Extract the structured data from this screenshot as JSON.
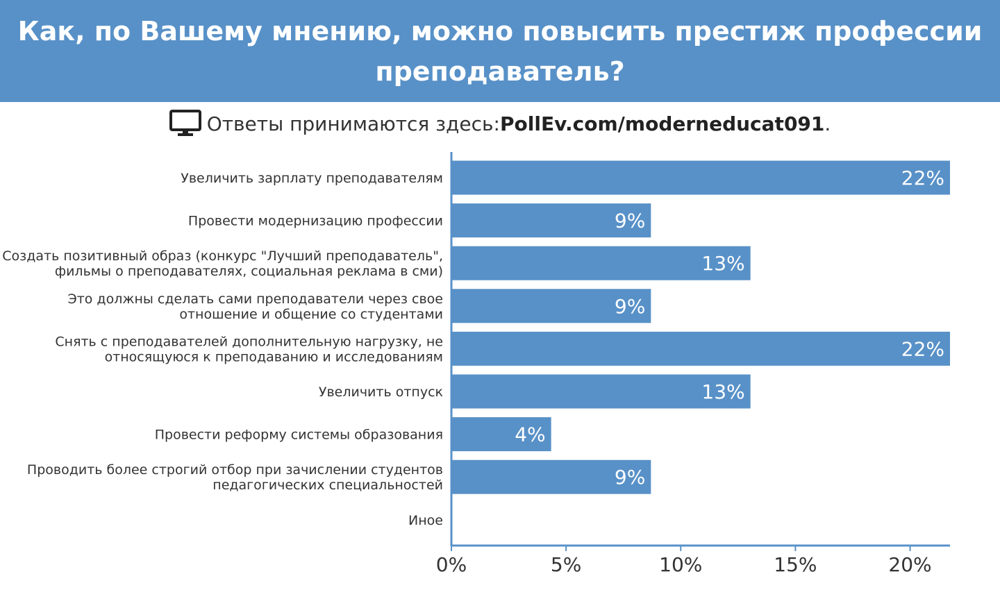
{
  "header": {
    "title": "Как, по Вашему мнению, можно повысить престиж профессии преподаватель?"
  },
  "response": {
    "prefix": "Ответы принимаются здесь: ",
    "url": "PollEv.com/moderneducat091",
    "suffix": ".",
    "icon": "monitor-icon"
  },
  "colors": {
    "header_bg": "#5891c8",
    "bar": "#5891c8",
    "axis": "#5891c8"
  },
  "chart_data": {
    "type": "bar",
    "orientation": "horizontal",
    "categories": [
      [
        "Увеличить зарплату преподавателям"
      ],
      [
        "Провести модернизацию профессии"
      ],
      [
        "Создать позитивный образ (конкурс \"Лучший преподаватель\",",
        "фильмы о преподавателях, социальная реклама в сми)"
      ],
      [
        "Это должны сделать сами преподаватели через свое",
        "отношение и общение со студентами"
      ],
      [
        "Снять с преподавателей дополнительную нагрузку, не",
        "относящуюся к преподаванию и исследованиям"
      ],
      [
        "Увеличить отпуск"
      ],
      [
        "Провести реформу системы образования"
      ],
      [
        "Проводить более строгий отбор при зачислении студентов",
        "педагогических специальностей"
      ],
      [
        "Иное"
      ]
    ],
    "values": [
      21.74,
      8.7,
      13.04,
      8.7,
      21.74,
      13.04,
      4.35,
      8.7,
      0
    ],
    "value_labels": [
      "22%",
      "9%",
      "13%",
      "9%",
      "22%",
      "13%",
      "4%",
      "9%",
      ""
    ],
    "x_ticks": [
      "0%",
      "5%",
      "10%",
      "15%",
      "20%"
    ],
    "x_tick_values": [
      0,
      5,
      10,
      15,
      20
    ],
    "xlim": [
      0,
      21.74
    ],
    "grid": false
  }
}
